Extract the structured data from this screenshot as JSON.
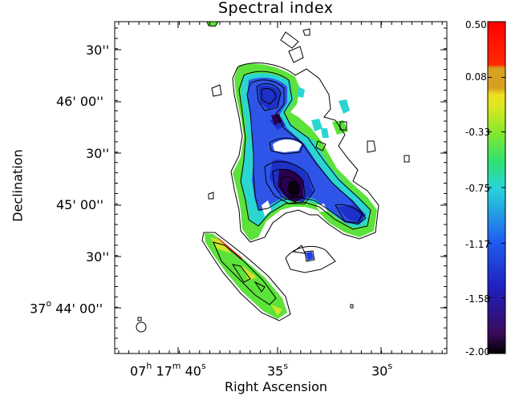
{
  "chart_data": {
    "type": "heatmap",
    "title": "Spectral index",
    "xlabel": "Right Ascension",
    "ylabel": "Declination",
    "x_ticks": [
      {
        "label": "07h 17m 40s",
        "h": "07",
        "m": "17",
        "s": "40"
      },
      {
        "label": "35s",
        "s": "35"
      },
      {
        "label": "30s",
        "s": "30"
      }
    ],
    "y_ticks": [
      {
        "label": "30''"
      },
      {
        "label": "46' 00''"
      },
      {
        "label": "30''"
      },
      {
        "label": "45' 00''"
      },
      {
        "label": "30''"
      },
      {
        "label": "37o 44' 00''",
        "deg": "37",
        "rest": "44' 00''"
      }
    ],
    "colorbar": {
      "min": -2.0,
      "max": 0.5,
      "tick_labels": [
        "0.50",
        "0.08",
        "-0.33",
        "-0.75",
        "-1.17",
        "-1.58",
        "-2.00"
      ],
      "tick_values": [
        0.5,
        0.08,
        -0.33,
        -0.75,
        -1.17,
        -1.58,
        -2.0
      ]
    },
    "colors": {
      "steep": "#2a0050",
      "blue": "#1f3fe8",
      "cyan": "#2ad6d0",
      "green": "#5ce23a",
      "yellow": "#e6e626",
      "orange": "#d9a020",
      "red": "#ff0000"
    }
  }
}
